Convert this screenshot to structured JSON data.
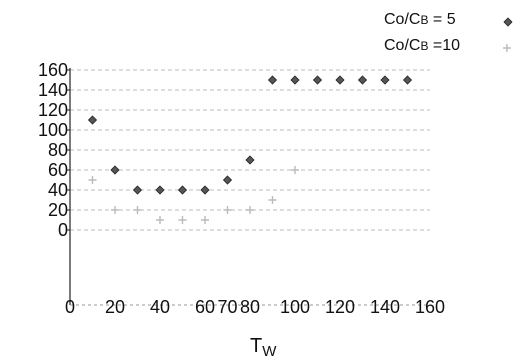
{
  "chart_data": {
    "type": "scatter",
    "title": "",
    "xlabel": "T",
    "xlabel_sub": "W",
    "ylabel": "",
    "xlim": [
      0,
      160
    ],
    "ylim": [
      0,
      160
    ],
    "xticks": [
      "0",
      "20",
      "40",
      "60",
      "70",
      "80",
      "100",
      "120",
      "140",
      "160"
    ],
    "yticks": [
      "0",
      "20",
      "40",
      "60",
      "80",
      "100",
      "120",
      "140",
      "160"
    ],
    "grid": "horizontal dashed",
    "legend_position": "top-right",
    "series": [
      {
        "name": "Co/CB = 5",
        "name_parts": [
          "Co/C",
          "B",
          " = 5"
        ],
        "marker": "diamond",
        "color": "#555555",
        "points": [
          [
            10,
            110
          ],
          [
            20,
            60
          ],
          [
            30,
            40
          ],
          [
            40,
            40
          ],
          [
            50,
            40
          ],
          [
            60,
            40
          ],
          [
            70,
            50
          ],
          [
            80,
            70
          ],
          [
            90,
            150
          ],
          [
            100,
            150
          ],
          [
            110,
            150
          ],
          [
            120,
            150
          ],
          [
            130,
            150
          ],
          [
            140,
            150
          ],
          [
            150,
            150
          ]
        ]
      },
      {
        "name": "Co/CB =10",
        "name_parts": [
          "Co/C",
          "B",
          " =10"
        ],
        "marker": "plus",
        "color": "#bbbbbb",
        "points": [
          [
            10,
            50
          ],
          [
            20,
            20
          ],
          [
            30,
            20
          ],
          [
            40,
            10
          ],
          [
            50,
            10
          ],
          [
            60,
            10
          ],
          [
            70,
            20
          ],
          [
            80,
            20
          ],
          [
            90,
            30
          ],
          [
            100,
            60
          ]
        ]
      }
    ]
  }
}
